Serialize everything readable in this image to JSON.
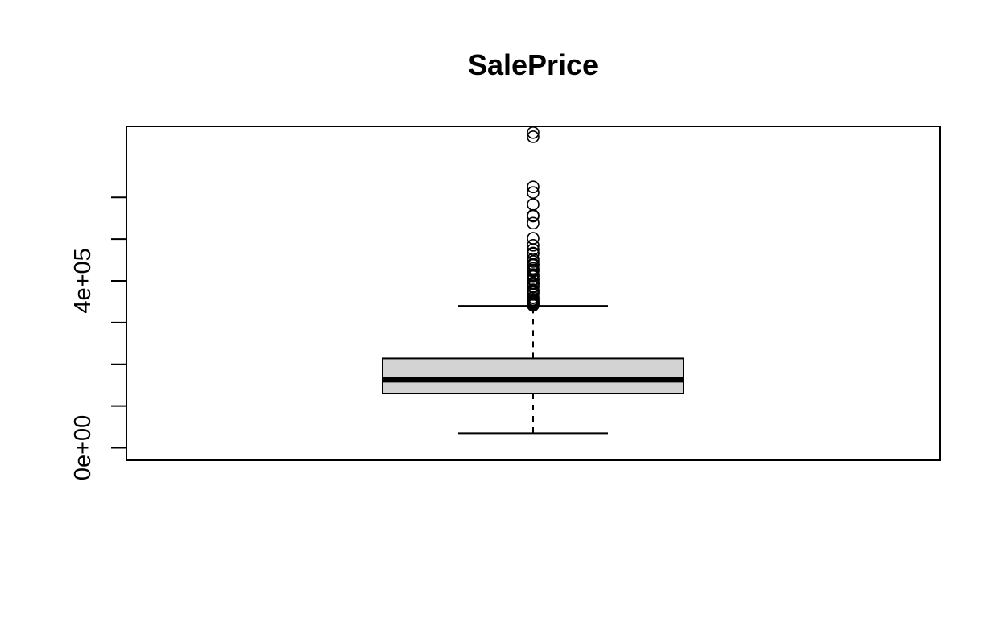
{
  "chart_data": {
    "type": "box",
    "title": "SalePrice",
    "xlabel": "",
    "ylabel": "",
    "ylim": [
      -30000,
      770000
    ],
    "y_ticks": [
      0,
      100000,
      200000,
      300000,
      400000,
      500000,
      600000
    ],
    "y_tick_labels": [
      {
        "value": 0,
        "label": "0e+00"
      },
      {
        "value": 400000,
        "label": "4e+05"
      }
    ],
    "box": {
      "whisker_low": 34900,
      "q1": 129975,
      "median": 163000,
      "q3": 214000,
      "whisker_high": 340000
    },
    "outliers": [
      341000,
      342643,
      345000,
      345000,
      348000,
      350000,
      350000,
      354000,
      355000,
      359100,
      360000,
      367294,
      372402,
      372500,
      375000,
      377426,
      378500,
      385000,
      386250,
      392000,
      392500,
      394432,
      394617,
      395000,
      402000,
      402861,
      403000,
      410000,
      412500,
      415298,
      423000,
      424870,
      426000,
      430000,
      437154,
      438780,
      440000,
      446261,
      451950,
      465000,
      466500,
      475000,
      485000,
      501837,
      538000,
      555000,
      556581,
      582933,
      611657,
      625000,
      745000,
      755000
    ],
    "fill_color": "#d3d3d3",
    "line_color": "#000000",
    "grid": false
  }
}
